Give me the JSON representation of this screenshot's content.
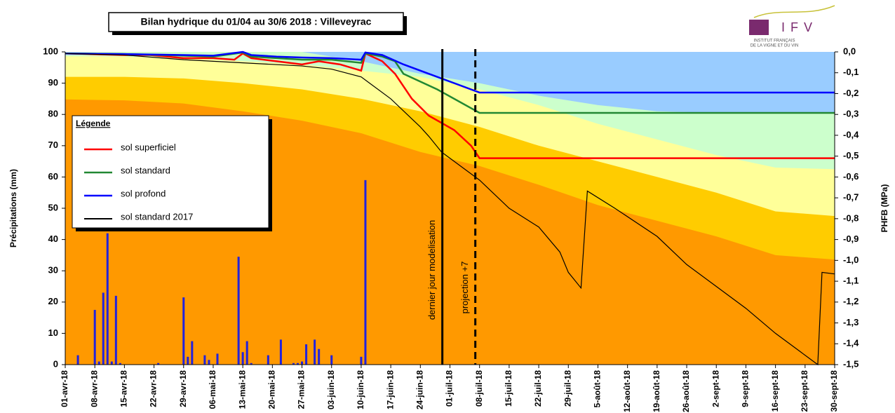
{
  "chart_data": {
    "type": "line",
    "title": "Bilan hydrique du 01/04 au 30/6 2018 : Villeveyrac",
    "ylabel": "Précipitations (mm)",
    "y2label": "PHFB (MPa)",
    "legend_title": "Légende",
    "logo": {
      "name": "IFV",
      "line1": "INSTITUT FRANÇAIS",
      "line2": "DE LA VIGNE ET DU VIN"
    },
    "xlim": [
      0,
      182
    ],
    "xticks": [
      {
        "value": 0,
        "label": "01-avr-18"
      },
      {
        "value": 7,
        "label": "08-avr-18"
      },
      {
        "value": 14,
        "label": "15-avr-18"
      },
      {
        "value": 21,
        "label": "22-avr-18"
      },
      {
        "value": 28,
        "label": "29-avr-18"
      },
      {
        "value": 35,
        "label": "06-mai-18"
      },
      {
        "value": 42,
        "label": "13-mai-18"
      },
      {
        "value": 49,
        "label": "20-mai-18"
      },
      {
        "value": 56,
        "label": "27-mai-18"
      },
      {
        "value": 63,
        "label": "03-juin-18"
      },
      {
        "value": 70,
        "label": "10-juin-18"
      },
      {
        "value": 77,
        "label": "17-juin-18"
      },
      {
        "value": 84,
        "label": "24-juin-18"
      },
      {
        "value": 91,
        "label": "01-juil-18"
      },
      {
        "value": 98,
        "label": "08-juil-18"
      },
      {
        "value": 105,
        "label": "15-juil-18"
      },
      {
        "value": 112,
        "label": "22-juil-18"
      },
      {
        "value": 119,
        "label": "29-juil-18"
      },
      {
        "value": 126,
        "label": "5-août-18"
      },
      {
        "value": 133,
        "label": "12-août-18"
      },
      {
        "value": 140,
        "label": "19-août-18"
      },
      {
        "value": 147,
        "label": "26-août-18"
      },
      {
        "value": 154,
        "label": "2-sept-18"
      },
      {
        "value": 161,
        "label": "9-sept-18"
      },
      {
        "value": 168,
        "label": "16-sept-18"
      },
      {
        "value": 175,
        "label": "23-sept-18"
      },
      {
        "value": 182,
        "label": "30-sept-18"
      }
    ],
    "ylim": [
      0,
      100
    ],
    "yticks": [
      0,
      10,
      20,
      30,
      40,
      50,
      60,
      70,
      80,
      90,
      100
    ],
    "y2lim": [
      -1.5,
      0
    ],
    "y2ticks": [
      {
        "value": 0,
        "label": "0,0"
      },
      {
        "value": -0.1,
        "label": "-0,1"
      },
      {
        "value": -0.2,
        "label": "-0,2"
      },
      {
        "value": -0.3,
        "label": "-0,3"
      },
      {
        "value": -0.4,
        "label": "-0,4"
      },
      {
        "value": -0.5,
        "label": "-0,5"
      },
      {
        "value": -0.6,
        "label": "-0,6"
      },
      {
        "value": -0.7,
        "label": "-0,7"
      },
      {
        "value": -0.8,
        "label": "-0,8"
      },
      {
        "value": -0.9,
        "label": "-0,9"
      },
      {
        "value": -1.0,
        "label": "-1,0"
      },
      {
        "value": -1.1,
        "label": "-1,1"
      },
      {
        "value": -1.2,
        "label": "-1,2"
      },
      {
        "value": -1.3,
        "label": "-1,3"
      },
      {
        "value": -1.4,
        "label": "-1,4"
      },
      {
        "value": -1.5,
        "label": "-1,5"
      }
    ],
    "zones": [
      {
        "color": "#99ccff",
        "x": [
          0,
          14,
          28,
          42,
          56,
          70,
          84,
          98,
          112,
          126,
          140,
          154,
          168,
          182
        ],
        "values": [
          100,
          100,
          100,
          100,
          100,
          100,
          100,
          100,
          100,
          100,
          100,
          100,
          100,
          100
        ]
      },
      {
        "color": "#ccffcc",
        "x": [
          0,
          14,
          28,
          42,
          56,
          70,
          84,
          98,
          112,
          126,
          140,
          154,
          168,
          182
        ],
        "values": [
          100,
          100,
          100,
          100,
          100,
          97,
          93,
          90,
          86,
          83,
          81,
          80.5,
          80.5,
          80.5
        ]
      },
      {
        "color": "#ffff99",
        "x": [
          0,
          14,
          28,
          42,
          56,
          70,
          84,
          98,
          112,
          126,
          140,
          154,
          168,
          182
        ],
        "values": [
          98.6,
          98.5,
          98,
          97,
          96,
          94,
          92,
          88,
          83,
          77,
          72,
          67,
          63,
          62.5
        ]
      },
      {
        "color": "#ffcc00",
        "x": [
          0,
          14,
          28,
          42,
          56,
          70,
          84,
          98,
          112,
          126,
          140,
          154,
          168,
          182
        ],
        "values": [
          92,
          92,
          91.5,
          90,
          88,
          85,
          81,
          76,
          70,
          65,
          60,
          55,
          49,
          47.5
        ]
      },
      {
        "color": "#ff9900",
        "x": [
          0,
          14,
          28,
          42,
          56,
          70,
          84,
          98,
          112,
          126,
          140,
          154,
          168,
          182
        ],
        "values": [
          84.8,
          84.5,
          83.5,
          81,
          78,
          74,
          68,
          63.5,
          57.5,
          51,
          46,
          41,
          35,
          33.6
        ]
      }
    ],
    "bars": {
      "color": "#2222dd",
      "x": [
        3,
        7,
        8,
        9,
        10,
        11,
        12,
        13,
        22,
        28,
        29,
        30,
        33,
        34,
        36,
        41,
        42,
        43,
        44,
        48,
        51,
        54,
        55,
        56,
        57,
        59,
        60,
        63,
        70,
        71
      ],
      "values": [
        3,
        17.5,
        1,
        23,
        42,
        1,
        22,
        0.5,
        0.5,
        21.5,
        2.5,
        7.5,
        3,
        1.5,
        3.5,
        34.5,
        4,
        7.5,
        0.5,
        3,
        8,
        0.5,
        0.5,
        1,
        6.5,
        8,
        5,
        3,
        2.5,
        59
      ]
    },
    "series": [
      {
        "name": "sol superficiel",
        "color": "#ff0000",
        "width": 2.5,
        "x": [
          0,
          14,
          20,
          28,
          35,
          40,
          42,
          44,
          50,
          56,
          60,
          65,
          70,
          71,
          75,
          78,
          82,
          86,
          92,
          96,
          98,
          182
        ],
        "values": [
          99.5,
          99,
          99,
          98,
          98,
          97.5,
          99.5,
          98,
          97,
          96,
          97,
          96,
          94,
          99.5,
          97,
          93,
          85,
          79.6,
          75,
          70,
          66,
          66
        ]
      },
      {
        "name": "sol standard",
        "color": "#228833",
        "width": 2.5,
        "x": [
          0,
          14,
          28,
          35,
          42,
          44,
          50,
          56,
          63,
          70,
          71,
          75,
          78,
          80,
          88,
          98,
          182
        ],
        "values": [
          99.5,
          99.3,
          98.8,
          98.5,
          99.8,
          98.5,
          98,
          97.5,
          97.5,
          96.5,
          99.5,
          98.5,
          97,
          93,
          88,
          80.5,
          80.5
        ]
      },
      {
        "name": "sol profond",
        "color": "#0000ff",
        "width": 2.5,
        "x": [
          0,
          14,
          28,
          35,
          42,
          44,
          50,
          56,
          63,
          70,
          71,
          75,
          80,
          88,
          98,
          182
        ],
        "values": [
          99.5,
          99.3,
          99,
          98.8,
          100,
          99,
          98.5,
          98.2,
          98,
          97.5,
          99.8,
          99,
          96,
          92,
          87,
          87
        ]
      },
      {
        "name": "sol standard 2017",
        "color": "#000000",
        "width": 1.2,
        "x": [
          0,
          14,
          28,
          42,
          56,
          63,
          70,
          72,
          77,
          84,
          86,
          89,
          92,
          98,
          105,
          112,
          117,
          119,
          122,
          123.5,
          130,
          140,
          147,
          154,
          161,
          168,
          178,
          179,
          182
        ],
        "values": [
          99.5,
          99,
          97.5,
          96.5,
          95.5,
          94.5,
          92,
          90,
          85,
          76,
          73,
          68,
          65,
          59,
          50,
          44,
          36,
          29.5,
          24.5,
          55.5,
          50,
          41,
          32,
          25,
          18,
          10,
          0,
          29.5,
          29
        ]
      }
    ],
    "annotations": [
      {
        "label": "dernier jour modelisation",
        "x": 89.2,
        "dash": false
      },
      {
        "label": "projection +7",
        "x": 97,
        "dash": true
      }
    ]
  }
}
